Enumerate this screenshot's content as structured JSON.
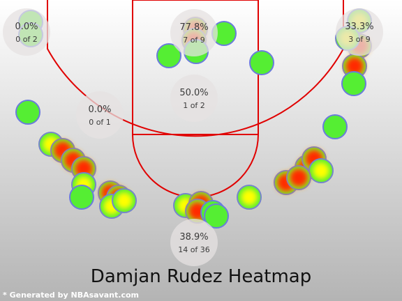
{
  "title": "Damjan Rudez Heatmap",
  "credit": "* Generated by NBAsavant.com",
  "chart_data": {
    "type": "heatmap",
    "title": "Damjan Rudez Heatmap",
    "zones": [
      {
        "id": "left-corner-3",
        "pct": "0.0%",
        "made_attempts": "0 of 2",
        "made": 0,
        "attempts": 2
      },
      {
        "id": "paint",
        "pct": "77.8%",
        "made_attempts": "7 of 9",
        "made": 7,
        "attempts": 9
      },
      {
        "id": "right-corner-3",
        "pct": "33.3%",
        "made_attempts": "3 of 9",
        "made": 3,
        "attempts": 9
      },
      {
        "id": "left-midrange",
        "pct": "0.0%",
        "made_attempts": "0 of 1",
        "made": 0,
        "attempts": 1
      },
      {
        "id": "free-throw-midrange",
        "pct": "50.0%",
        "made_attempts": "1 of 2",
        "made": 1,
        "attempts": 2
      },
      {
        "id": "above-the-break-3",
        "pct": "38.9%",
        "made_attempts": "14 of 36",
        "made": 14,
        "attempts": 36
      }
    ],
    "colors": {
      "hot": "#ff2a00",
      "warm": "#ffff00",
      "cool": "#55ee33",
      "court_lines": "#e00000"
    }
  }
}
